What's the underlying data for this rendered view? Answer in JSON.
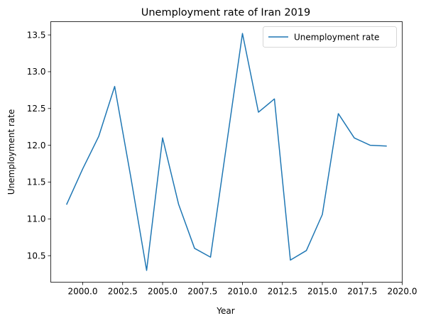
{
  "chart_data": {
    "type": "line",
    "title": "Unemployment rate of Iran 2019",
    "xlabel": "Year",
    "ylabel": "Unemployment rate",
    "xlim": [
      1998.0,
      2020.0
    ],
    "ylim": [
      10.14,
      13.68
    ],
    "xticks": [
      2000.0,
      2002.5,
      2005.0,
      2007.5,
      2010.0,
      2012.5,
      2015.0,
      2017.5,
      2020.0
    ],
    "xtick_labels": [
      "2000.0",
      "2002.5",
      "2005.0",
      "2007.5",
      "2010.0",
      "2012.5",
      "2015.0",
      "2017.5",
      "2020.0"
    ],
    "yticks": [
      10.5,
      11.0,
      11.5,
      12.0,
      12.5,
      13.0,
      13.5
    ],
    "ytick_labels": [
      "10.5",
      "11.0",
      "11.5",
      "12.0",
      "12.5",
      "13.0",
      "13.5"
    ],
    "grid": false,
    "legend": {
      "position": "upper-right",
      "entries": [
        "Unemployment rate"
      ]
    },
    "series": [
      {
        "name": "Unemployment rate",
        "color": "#1f77b4",
        "x": [
          1999,
          2000,
          2001,
          2002,
          2003,
          2004,
          2005,
          2006,
          2007,
          2008,
          2009,
          2010,
          2011,
          2012,
          2013,
          2014,
          2015,
          2016,
          2017,
          2018,
          2019
        ],
        "y": [
          11.2,
          11.68,
          12.12,
          12.8,
          11.58,
          10.3,
          12.1,
          11.2,
          10.6,
          10.48,
          12.0,
          13.52,
          12.45,
          12.63,
          10.44,
          10.57,
          11.06,
          12.43,
          12.1,
          12.0,
          11.99
        ]
      }
    ]
  }
}
